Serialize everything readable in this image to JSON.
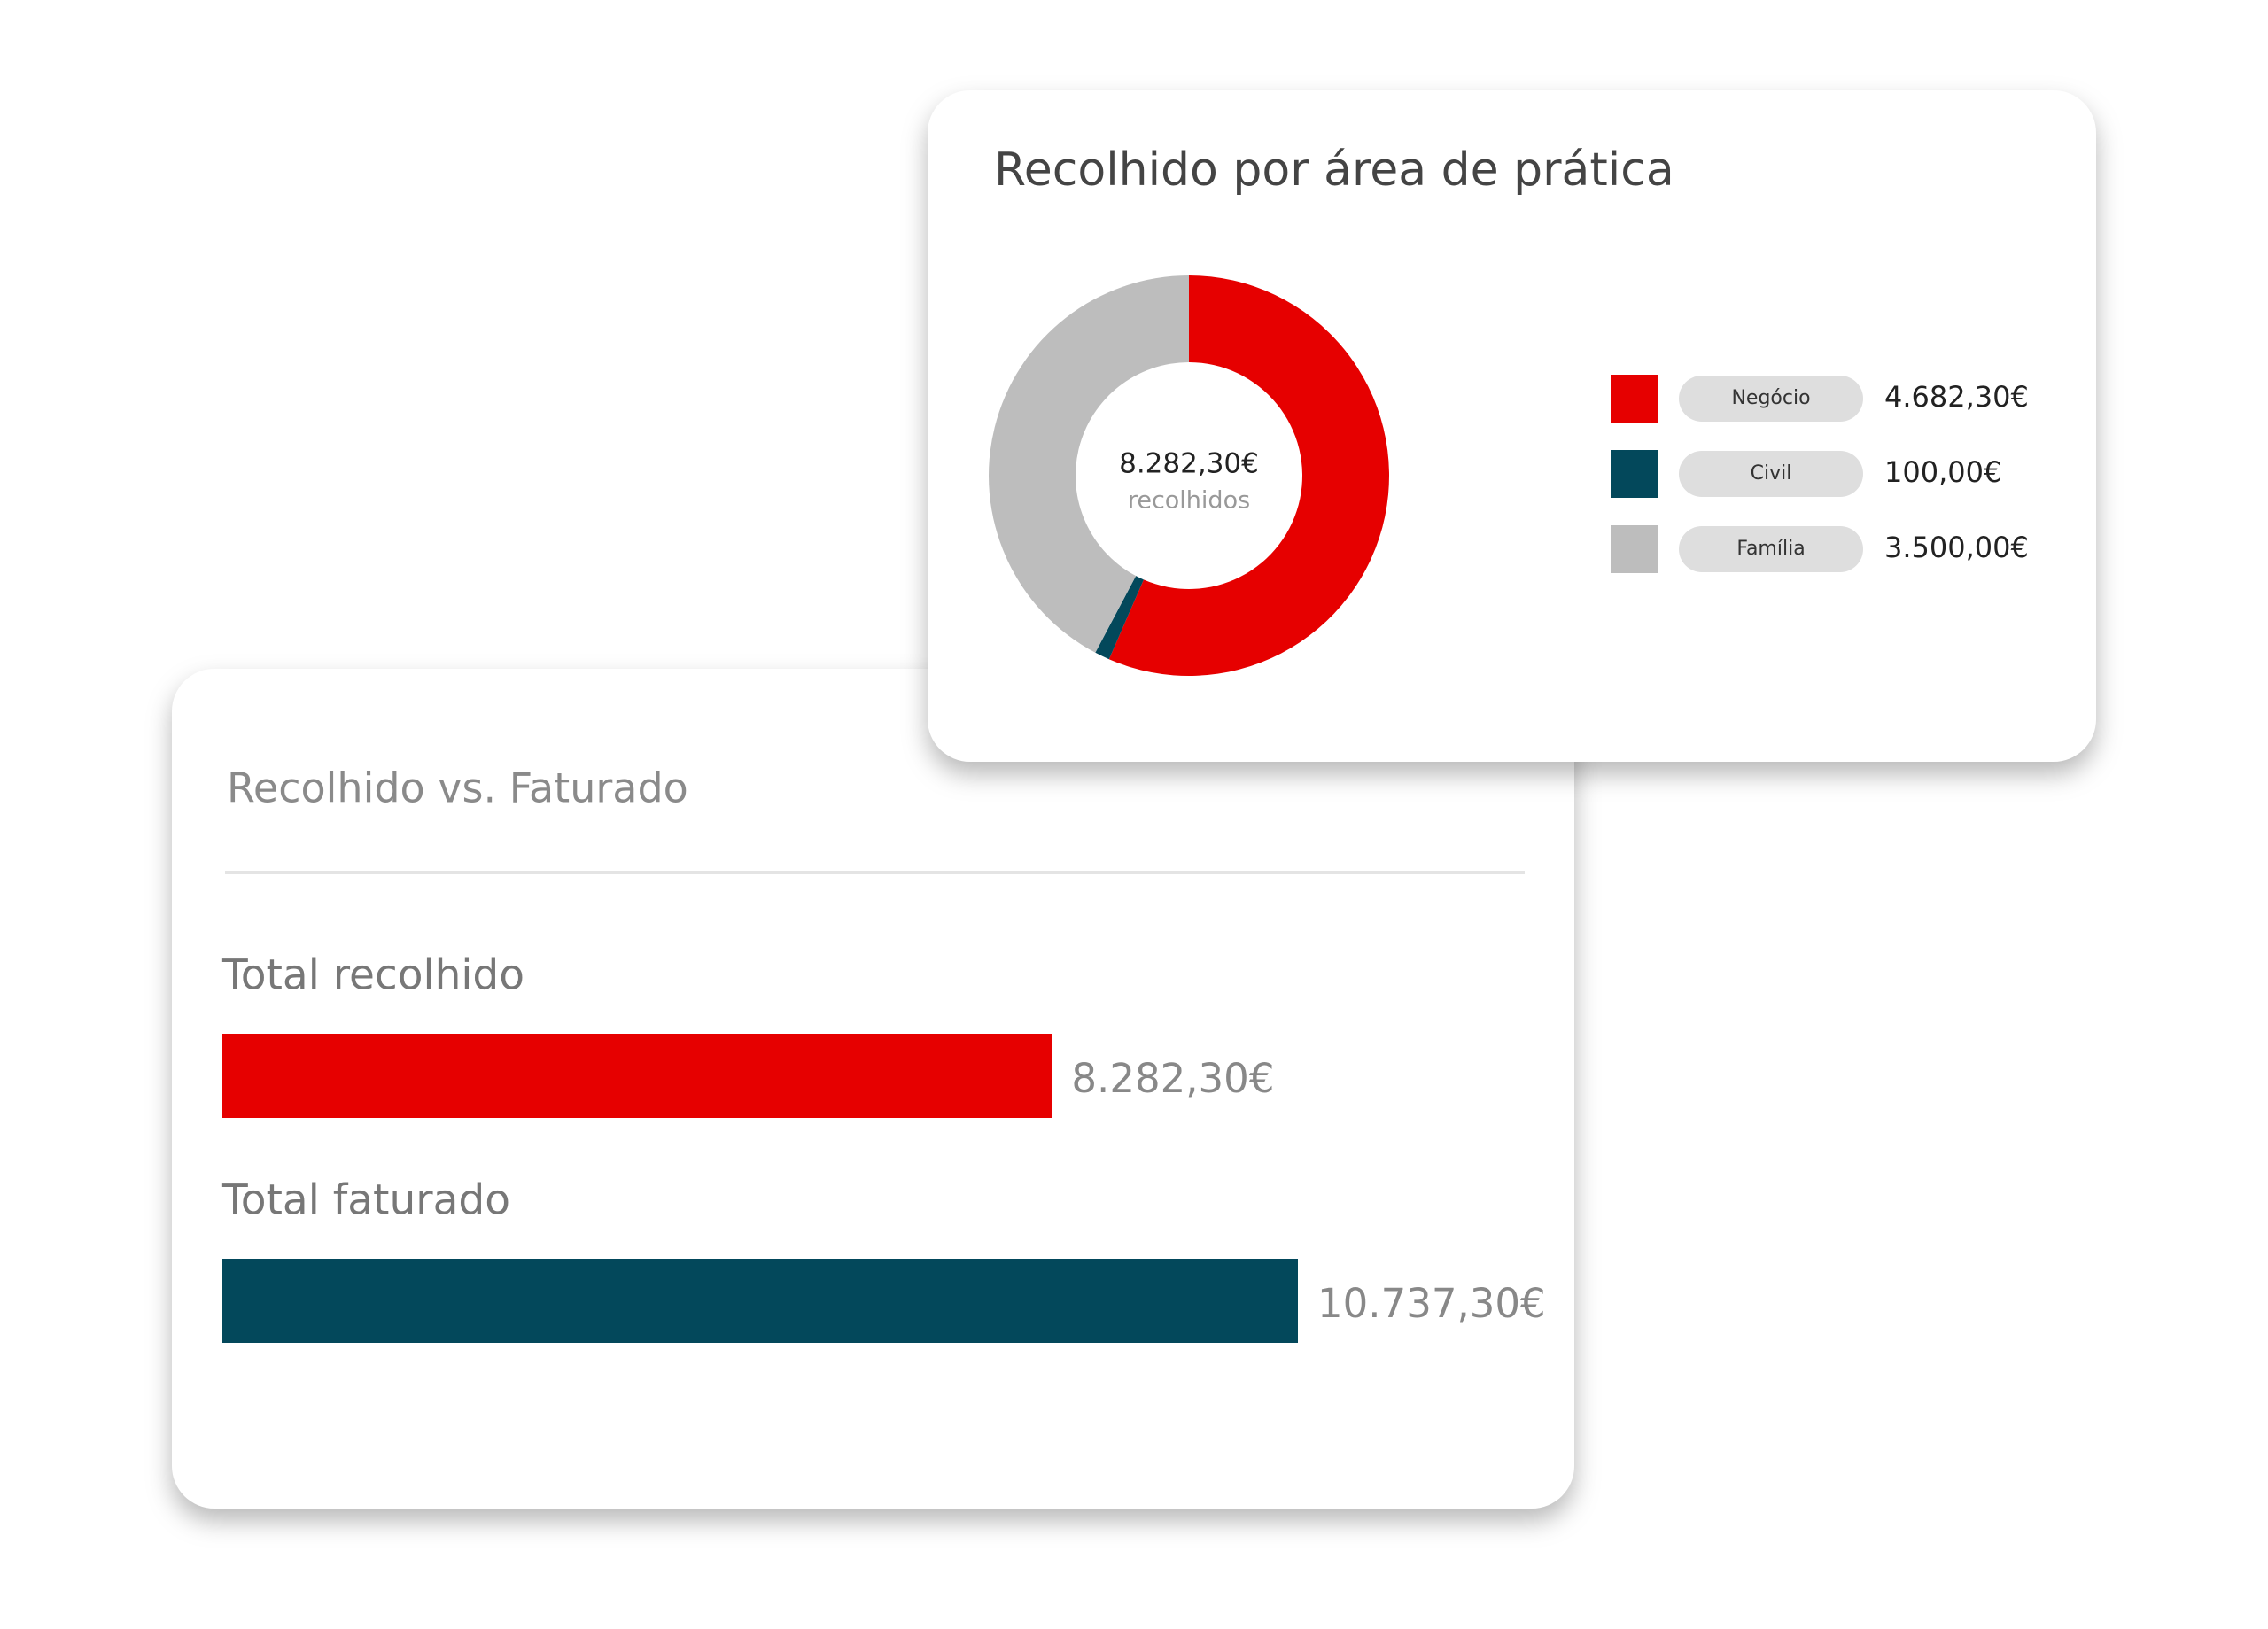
{
  "chart_data": [
    {
      "type": "donut",
      "title": "Recolhido por área de prática",
      "total": 8282.3,
      "total_label": "8.282,30€",
      "total_caption": "recolhidos",
      "categories": [
        "Negócio",
        "Civil",
        "Família"
      ],
      "values": [
        4682.3,
        100,
        3500
      ],
      "value_labels": [
        "4.682,30€",
        "100,00€",
        "3.500,00€"
      ],
      "colors": [
        "#e60000",
        "#03485b",
        "#bdbdbd"
      ]
    },
    {
      "type": "bar",
      "orientation": "horizontal",
      "title": "Recolhido vs. Faturado",
      "categories": [
        "Total recolhido",
        "Total faturado"
      ],
      "values": [
        8282.3,
        10737.3
      ],
      "value_labels": [
        "8.282,30€",
        "10.737,30€"
      ],
      "colors": [
        "#e60000",
        "#03485b"
      ]
    }
  ]
}
